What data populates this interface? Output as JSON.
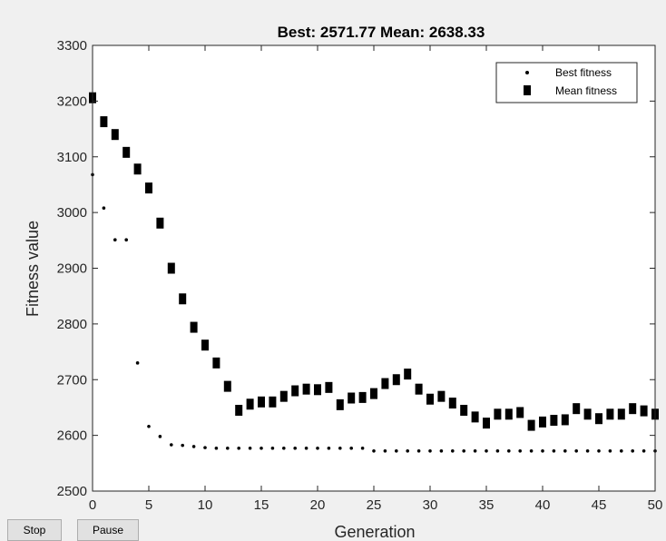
{
  "chart_data": {
    "type": "scatter",
    "title": "Best: 2571.77 Mean: 2638.33",
    "xlabel": "Generation",
    "ylabel": "Fitness value",
    "xlim": [
      0,
      50
    ],
    "ylim": [
      2500,
      3300
    ],
    "xticks": [
      0,
      5,
      10,
      15,
      20,
      25,
      30,
      35,
      40,
      45,
      50
    ],
    "yticks": [
      2500,
      2600,
      2700,
      2800,
      2900,
      3000,
      3100,
      3200,
      3300
    ],
    "grid": false,
    "legend_position": "top-right",
    "series": [
      {
        "name": "Best fitness",
        "marker": "dot",
        "color": "#000000",
        "x": [
          0,
          1,
          2,
          3,
          4,
          5,
          6,
          7,
          8,
          9,
          10,
          11,
          12,
          13,
          14,
          15,
          16,
          17,
          18,
          19,
          20,
          21,
          22,
          23,
          24,
          25,
          26,
          27,
          28,
          29,
          30,
          31,
          32,
          33,
          34,
          35,
          36,
          37,
          38,
          39,
          40,
          41,
          42,
          43,
          44,
          45,
          46,
          47,
          48,
          49,
          50
        ],
        "y": [
          3068,
          3008,
          2951,
          2951,
          2730,
          2616,
          2598,
          2583,
          2582,
          2580,
          2578,
          2577,
          2577,
          2577,
          2577,
          2577,
          2577,
          2577,
          2577,
          2577,
          2577,
          2577,
          2577,
          2577,
          2577,
          2572,
          2572,
          2572,
          2572,
          2572,
          2572,
          2572,
          2572,
          2572,
          2572,
          2572,
          2572,
          2572,
          2572,
          2572,
          2572,
          2572,
          2572,
          2572,
          2572,
          2572,
          2572,
          2572,
          2572,
          2572,
          2572
        ]
      },
      {
        "name": "Mean fitness",
        "marker": "square",
        "color": "#000000",
        "x": [
          0,
          1,
          2,
          3,
          4,
          5,
          6,
          7,
          8,
          9,
          10,
          11,
          12,
          13,
          14,
          15,
          16,
          17,
          18,
          19,
          20,
          21,
          22,
          23,
          24,
          25,
          26,
          27,
          28,
          29,
          30,
          31,
          32,
          33,
          34,
          35,
          36,
          37,
          38,
          39,
          40,
          41,
          42,
          43,
          44,
          45,
          46,
          47,
          48,
          49,
          50
        ],
        "y": [
          3206,
          3163,
          3140,
          3108,
          3078,
          3044,
          2981,
          2900,
          2845,
          2794,
          2762,
          2730,
          2688,
          2645,
          2656,
          2660,
          2660,
          2670,
          2680,
          2683,
          2682,
          2686,
          2655,
          2667,
          2668,
          2675,
          2693,
          2700,
          2710,
          2683,
          2665,
          2670,
          2658,
          2645,
          2633,
          2622,
          2638,
          2638,
          2641,
          2618,
          2624,
          2627,
          2628,
          2648,
          2638,
          2630,
          2638,
          2638,
          2648,
          2644,
          2638
        ]
      }
    ]
  },
  "controls": {
    "stop_label": "Stop",
    "pause_label": "Pause"
  }
}
